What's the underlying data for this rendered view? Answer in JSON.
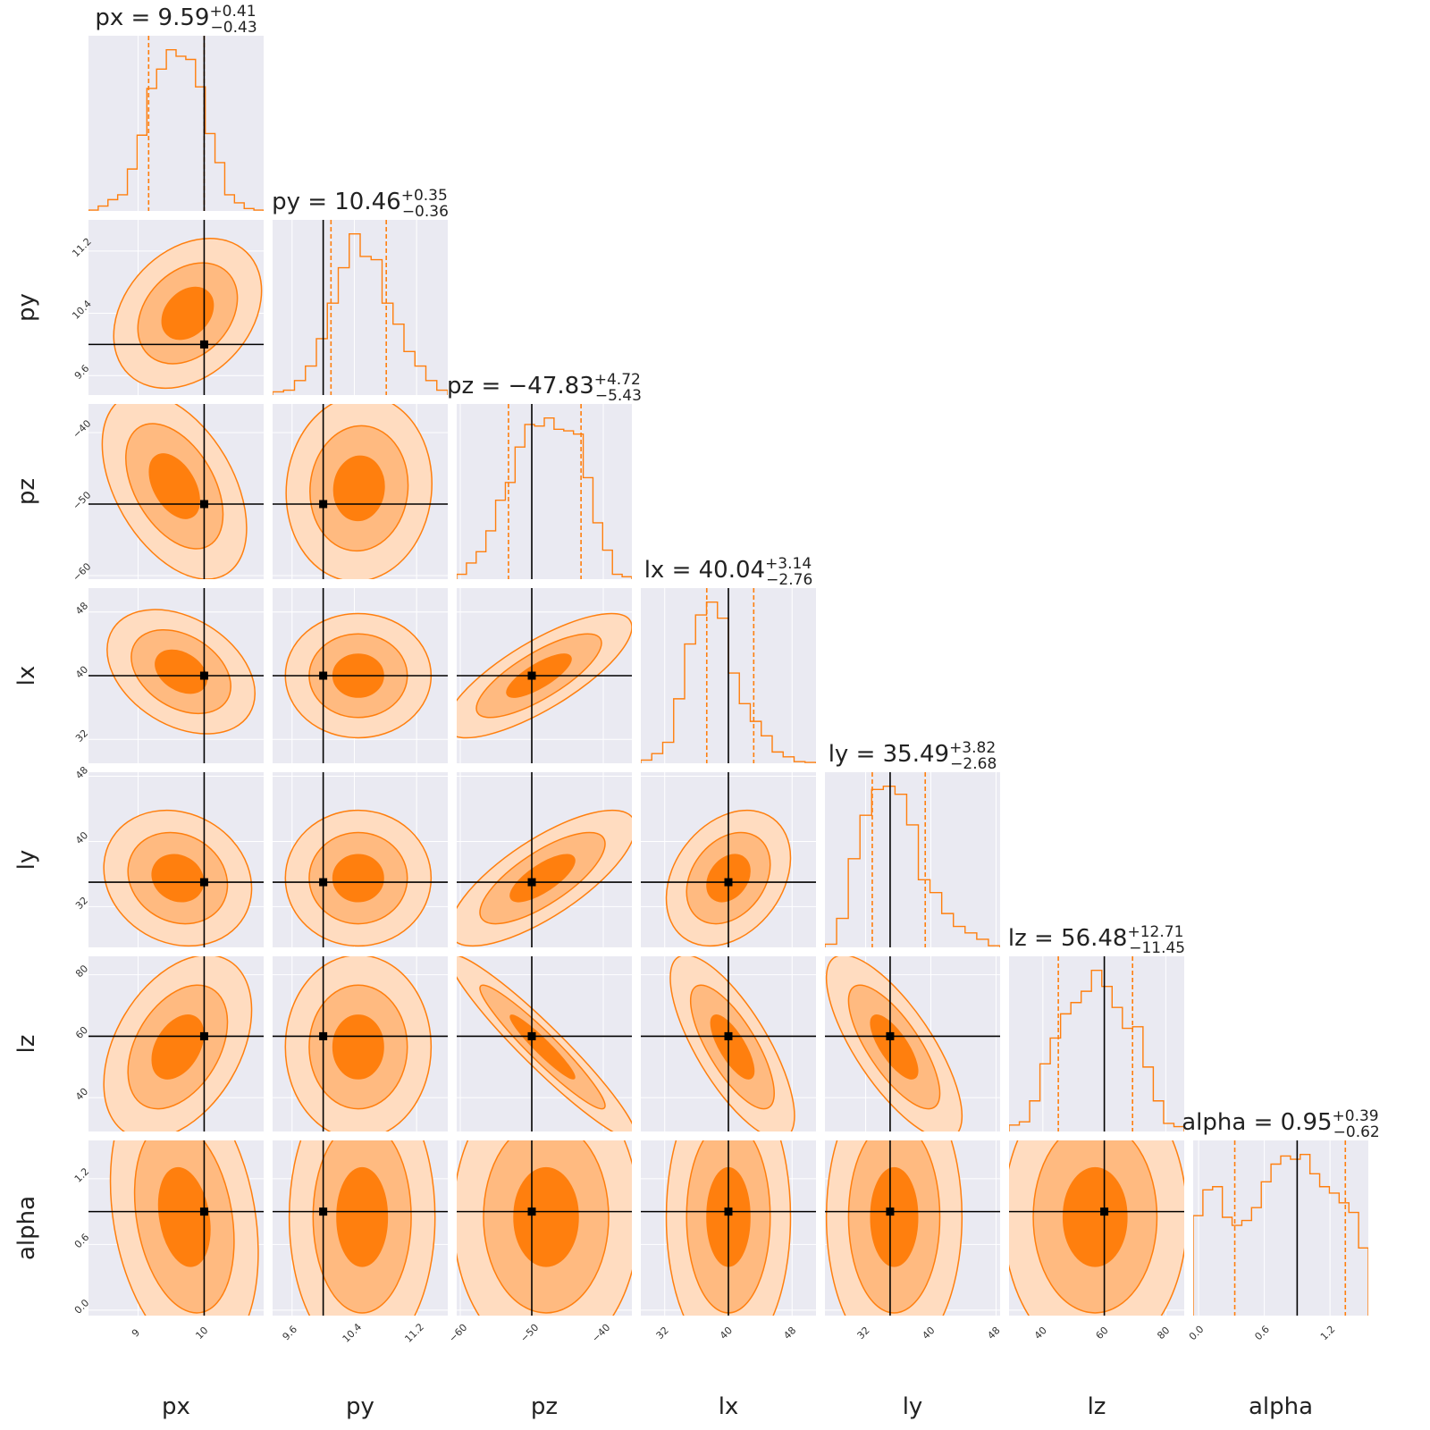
{
  "chart_data": {
    "type": "corner",
    "parameters": [
      "px",
      "py",
      "pz",
      "lx",
      "ly",
      "lz",
      "alpha"
    ],
    "colors": {
      "accent": "#ff7f0e",
      "fill_outer": "#ffdcc0",
      "fill_mid": "#ffba80",
      "fill_inner": "#ff7f0e",
      "truth": "#000000",
      "panel_bg": "#eaeaf2",
      "grid": "#ffffff"
    },
    "ranges": {
      "px": [
        8.25,
        10.9
      ],
      "py": [
        9.35,
        11.6
      ],
      "pz": [
        -60.5,
        -36.0
      ],
      "lx": [
        29.0,
        51.0
      ],
      "ly": [
        27.0,
        48.5
      ],
      "lz": [
        29.0,
        86.0
      ],
      "alpha": [
        -0.05,
        1.55
      ]
    },
    "ticks": {
      "px": {
        "values": [
          9,
          10
        ],
        "labels": [
          "9",
          "10"
        ]
      },
      "py": {
        "values": [
          9.6,
          10.4,
          11.2
        ],
        "labels": [
          "9.6",
          "10.4",
          "11.2"
        ]
      },
      "pz": {
        "values": [
          -60,
          -50,
          -40
        ],
        "labels": [
          "−60",
          "−50",
          "−40"
        ]
      },
      "lx": {
        "values": [
          32,
          40,
          48
        ],
        "labels": [
          "32",
          "40",
          "48"
        ]
      },
      "ly": {
        "values": [
          32,
          40,
          48
        ],
        "labels": [
          "32",
          "40",
          "48"
        ]
      },
      "lz": {
        "values": [
          40,
          60,
          80
        ],
        "labels": [
          "40",
          "60",
          "80"
        ]
      },
      "alpha": {
        "values": [
          0.0,
          0.6,
          1.2
        ],
        "labels": [
          "0.0",
          "0.6",
          "1.2"
        ]
      }
    },
    "truth": {
      "px": 10.0,
      "py": 10.0,
      "pz": -50.0,
      "lx": 40.0,
      "ly": 35.0,
      "lz": 60.0,
      "alpha": 0.9
    },
    "titles": {
      "px": {
        "name": "px",
        "value": "9.59",
        "plus": "+0.41",
        "minus": "−0.43"
      },
      "py": {
        "name": "py",
        "value": "10.46",
        "plus": "+0.35",
        "minus": "−0.36"
      },
      "pz": {
        "name": "pz",
        "value": "−47.83",
        "plus": "+4.72",
        "minus": "−5.43"
      },
      "lx": {
        "name": "lx",
        "value": "40.04",
        "plus": "+3.14",
        "minus": "−2.76"
      },
      "ly": {
        "name": "ly",
        "value": "35.49",
        "plus": "+3.82",
        "minus": "−2.68"
      },
      "lz": {
        "name": "lz",
        "value": "56.48",
        "plus": "+12.71",
        "minus": "−11.45"
      },
      "alpha": {
        "name": "alpha",
        "value": "0.95",
        "plus": "+0.39",
        "minus": "−0.62"
      }
    },
    "quantiles": {
      "px": [
        9.16,
        9.59,
        10.0
      ],
      "py": [
        10.1,
        10.46,
        10.81
      ],
      "pz": [
        -53.26,
        -47.83,
        -43.11
      ],
      "lx": [
        37.28,
        40.04,
        43.18
      ],
      "ly": [
        32.81,
        35.49,
        39.31
      ],
      "lz": [
        45.03,
        56.48,
        69.19
      ],
      "alpha": [
        0.33,
        0.95,
        1.34
      ]
    },
    "histograms": {
      "px": [
        0.005,
        0.03,
        0.07,
        0.1,
        0.26,
        0.47,
        0.76,
        0.88,
        1.0,
        0.96,
        0.94,
        0.77,
        0.48,
        0.3,
        0.1,
        0.05,
        0.015,
        0.005
      ],
      "py": [
        0.02,
        0.03,
        0.09,
        0.18,
        0.35,
        0.57,
        0.79,
        1.0,
        0.86,
        0.84,
        0.57,
        0.44,
        0.27,
        0.18,
        0.09,
        0.03
      ],
      "pz": [
        0.03,
        0.1,
        0.17,
        0.3,
        0.49,
        0.6,
        0.82,
        0.96,
        0.95,
        1.0,
        0.93,
        0.92,
        0.9,
        0.63,
        0.35,
        0.18,
        0.03,
        0.015
      ],
      "lx": [
        0.02,
        0.06,
        0.13,
        0.4,
        0.74,
        0.92,
        1.0,
        0.9,
        0.56,
        0.37,
        0.26,
        0.17,
        0.07,
        0.04,
        0.01,
        0.005
      ],
      "ly": [
        0.02,
        0.18,
        0.55,
        0.82,
        0.98,
        1.0,
        0.95,
        0.76,
        0.42,
        0.34,
        0.21,
        0.13,
        0.09,
        0.05,
        0.01
      ],
      "lz": [
        0.04,
        0.06,
        0.19,
        0.42,
        0.58,
        0.73,
        0.8,
        0.87,
        1.0,
        0.9,
        0.77,
        0.64,
        0.65,
        0.4,
        0.19,
        0.05,
        0.03
      ],
      "alpha": [
        0.62,
        0.78,
        0.8,
        0.61,
        0.56,
        0.59,
        0.67,
        0.83,
        0.94,
        0.99,
        0.97,
        1.0,
        0.88,
        0.8,
        0.76,
        0.7,
        0.64,
        0.42
      ]
    },
    "contours": {
      "px|py": {
        "center": [
          9.75,
          10.4
        ],
        "sigma": [
          0.43,
          0.37
        ],
        "rho": 0.3
      },
      "px|pz": {
        "center": [
          9.55,
          -47.5
        ],
        "sigma": [
          0.42,
          5.0
        ],
        "rho": -0.45
      },
      "py|pz": {
        "center": [
          10.46,
          -47.8
        ],
        "sigma": [
          0.36,
          5.0
        ],
        "rho": 0.05
      },
      "px|lx": {
        "center": [
          9.65,
          40.5
        ],
        "sigma": [
          0.43,
          3.0
        ],
        "rho": -0.35
      },
      "py|lx": {
        "center": [
          10.45,
          40.0
        ],
        "sigma": [
          0.36,
          3.0
        ],
        "rho": 0.0
      },
      "pz|lx": {
        "center": [
          -49.0,
          40.0
        ],
        "sigma": [
          5.0,
          3.0
        ],
        "rho": 0.78
      },
      "px|ly": {
        "center": [
          9.6,
          35.5
        ],
        "sigma": [
          0.43,
          3.2
        ],
        "rho": -0.15
      },
      "py|ly": {
        "center": [
          10.45,
          35.5
        ],
        "sigma": [
          0.36,
          3.2
        ],
        "rho": 0.0
      },
      "pz|ly": {
        "center": [
          -48.5,
          35.5
        ],
        "sigma": [
          5.0,
          3.2
        ],
        "rho": 0.75
      },
      "lx|ly": {
        "center": [
          40.0,
          35.5
        ],
        "sigma": [
          3.0,
          3.2
        ],
        "rho": 0.3
      },
      "px|lz": {
        "center": [
          9.6,
          56.5
        ],
        "sigma": [
          0.43,
          11.5
        ],
        "rho": 0.4
      },
      "py|lz": {
        "center": [
          10.45,
          56.5
        ],
        "sigma": [
          0.36,
          11.5
        ],
        "rho": 0.0
      },
      "pz|lz": {
        "center": [
          -48.5,
          56.5
        ],
        "sigma": [
          5.0,
          11.5
        ],
        "rho": -0.95
      },
      "lx|lz": {
        "center": [
          40.5,
          56.5
        ],
        "sigma": [
          3.0,
          11.5
        ],
        "rho": -0.75
      },
      "ly|lz": {
        "center": [
          35.5,
          56.5
        ],
        "sigma": [
          3.2,
          11.5
        ],
        "rho": -0.75
      },
      "px|alpha": {
        "center": [
          9.7,
          0.85
        ],
        "sigma": [
          0.43,
          0.5
        ],
        "rho": -0.25
      },
      "py|alpha": {
        "center": [
          10.5,
          0.85
        ],
        "sigma": [
          0.36,
          0.5
        ],
        "rho": 0.0
      },
      "pz|alpha": {
        "center": [
          -48.0,
          0.85
        ],
        "sigma": [
          5.0,
          0.5
        ],
        "rho": 0.0
      },
      "lx|alpha": {
        "center": [
          40.0,
          0.85
        ],
        "sigma": [
          3.0,
          0.5
        ],
        "rho": 0.0
      },
      "ly|alpha": {
        "center": [
          35.5,
          0.85
        ],
        "sigma": [
          3.2,
          0.5
        ],
        "rho": 0.0
      },
      "lz|alpha": {
        "center": [
          57.0,
          0.85
        ],
        "sigma": [
          11.5,
          0.5
        ],
        "rho": 0.0
      }
    }
  }
}
